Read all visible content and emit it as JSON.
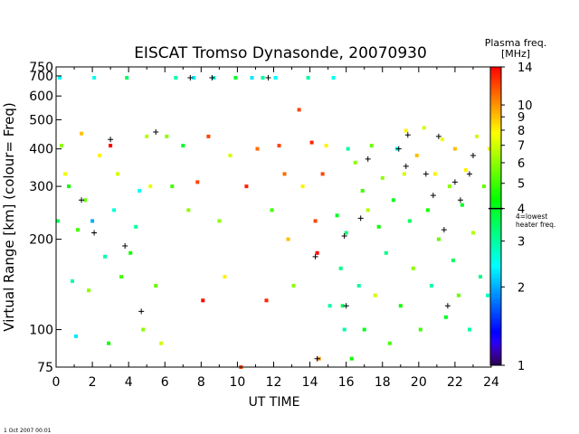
{
  "chart_data": {
    "type": "scatter",
    "title": "EISCAT Tromso Dynasonde,  20070930",
    "xlabel": "UT TIME",
    "ylabel": "Virtual Range [km]   (colour= Freq)",
    "footer": "1 Oct 2007 00:01",
    "x_scale": "linear",
    "y_scale": "log",
    "xlim": [
      0,
      24
    ],
    "ylim": [
      75,
      750
    ],
    "xticks": [
      "0",
      "2",
      "4",
      "6",
      "8",
      "10",
      "12",
      "14",
      "16",
      "18",
      "20",
      "22",
      "24"
    ],
    "yticks": [
      "75",
      "100",
      "200",
      "300",
      "400",
      "500",
      "600",
      "700",
      "750"
    ],
    "colorbar": {
      "title_line1": "Plasma freq.",
      "title_line2": "[MHz]",
      "scale": "log",
      "range": [
        1,
        14
      ],
      "ticks": [
        "1",
        "2",
        "3",
        "4",
        "5",
        "6",
        "7",
        "8",
        "9",
        "10",
        "14"
      ],
      "marker_label_line1": "4=lowest",
      "marker_label_line2": "heater freq.",
      "marker_value": 4
    },
    "series": [
      {
        "marker": "square",
        "points": [
          [
            0.1,
            230,
            3.5
          ],
          [
            0.2,
            690,
            2.4
          ],
          [
            0.3,
            410,
            6.0
          ],
          [
            0.5,
            330,
            7.5
          ],
          [
            0.7,
            300,
            4.5
          ],
          [
            0.9,
            145,
            3.0
          ],
          [
            1.1,
            95,
            2.3
          ],
          [
            1.2,
            215,
            5.0
          ],
          [
            1.4,
            450,
            9.0
          ],
          [
            1.6,
            270,
            5.5
          ],
          [
            1.8,
            135,
            6.0
          ],
          [
            2.0,
            230,
            2.0
          ],
          [
            2.1,
            690,
            2.5
          ],
          [
            2.4,
            380,
            8.0
          ],
          [
            2.7,
            175,
            3.0
          ],
          [
            2.9,
            90,
            4.5
          ],
          [
            3.0,
            410,
            14.0
          ],
          [
            3.2,
            250,
            2.6
          ],
          [
            3.4,
            330,
            7.0
          ],
          [
            3.6,
            150,
            5.0
          ],
          [
            3.9,
            690,
            3.5
          ],
          [
            4.1,
            180,
            4.5
          ],
          [
            4.4,
            220,
            3.0
          ],
          [
            4.6,
            290,
            2.5
          ],
          [
            4.8,
            100,
            6.0
          ],
          [
            5.0,
            440,
            6.5
          ],
          [
            5.2,
            300,
            7.5
          ],
          [
            5.5,
            140,
            5.5
          ],
          [
            5.8,
            90,
            7.0
          ],
          [
            6.1,
            440,
            6.0
          ],
          [
            6.4,
            300,
            5.0
          ],
          [
            6.6,
            690,
            3.0
          ],
          [
            7.0,
            410,
            4.0
          ],
          [
            7.3,
            250,
            6.0
          ],
          [
            7.6,
            690,
            2.3
          ],
          [
            7.8,
            310,
            12.0
          ],
          [
            8.1,
            125,
            14.0
          ],
          [
            8.4,
            440,
            12.0
          ],
          [
            8.7,
            690,
            2.6
          ],
          [
            9.0,
            230,
            6.0
          ],
          [
            9.3,
            150,
            8.0
          ],
          [
            9.6,
            380,
            7.0
          ],
          [
            9.9,
            690,
            4.0
          ],
          [
            10.2,
            75,
            12.0
          ],
          [
            10.5,
            300,
            13.0
          ],
          [
            10.8,
            690,
            2.3
          ],
          [
            11.1,
            400,
            11.0
          ],
          [
            11.4,
            690,
            3.0
          ],
          [
            11.6,
            125,
            13.0
          ],
          [
            11.9,
            250,
            5.0
          ],
          [
            12.1,
            690,
            2.4
          ],
          [
            12.3,
            410,
            12.0
          ],
          [
            12.6,
            330,
            11.0
          ],
          [
            12.8,
            200,
            9.0
          ],
          [
            13.1,
            140,
            6.0
          ],
          [
            13.4,
            540,
            12.0
          ],
          [
            13.6,
            300,
            8.0
          ],
          [
            13.9,
            690,
            3.0
          ],
          [
            14.1,
            420,
            13.0
          ],
          [
            14.3,
            230,
            12.0
          ],
          [
            14.4,
            180,
            14.0
          ],
          [
            14.5,
            80,
            10.0
          ],
          [
            14.7,
            330,
            12.0
          ],
          [
            14.9,
            410,
            8.0
          ],
          [
            15.1,
            120,
            3.0
          ],
          [
            15.3,
            690,
            2.5
          ],
          [
            15.5,
            240,
            4.0
          ],
          [
            15.7,
            160,
            3.2
          ],
          [
            15.8,
            120,
            3.5
          ],
          [
            15.9,
            100,
            3.0
          ],
          [
            16.0,
            210,
            3.3
          ],
          [
            16.1,
            400,
            3.0
          ],
          [
            16.3,
            80,
            4.5
          ],
          [
            16.5,
            360,
            6.0
          ],
          [
            16.7,
            140,
            3.0
          ],
          [
            16.9,
            290,
            5.0
          ],
          [
            17.0,
            100,
            4.0
          ],
          [
            17.2,
            250,
            6.5
          ],
          [
            17.4,
            410,
            5.5
          ],
          [
            17.6,
            130,
            7.0
          ],
          [
            17.8,
            220,
            4.5
          ],
          [
            18.0,
            320,
            6.0
          ],
          [
            18.2,
            180,
            3.2
          ],
          [
            18.4,
            90,
            5.0
          ],
          [
            18.6,
            270,
            4.0
          ],
          [
            18.8,
            400,
            2.5
          ],
          [
            19.0,
            120,
            4.5
          ],
          [
            19.2,
            330,
            7.0
          ],
          [
            19.3,
            460,
            8.0
          ],
          [
            19.5,
            230,
            3.5
          ],
          [
            19.7,
            160,
            6.0
          ],
          [
            19.9,
            380,
            9.0
          ],
          [
            20.1,
            100,
            5.0
          ],
          [
            20.3,
            470,
            7.0
          ],
          [
            20.5,
            250,
            4.5
          ],
          [
            20.7,
            140,
            3.0
          ],
          [
            20.9,
            330,
            8.0
          ],
          [
            21.1,
            200,
            5.5
          ],
          [
            21.3,
            430,
            7.5
          ],
          [
            21.5,
            110,
            4.0
          ],
          [
            21.7,
            300,
            6.0
          ],
          [
            21.9,
            170,
            3.5
          ],
          [
            22.0,
            400,
            9.0
          ],
          [
            22.2,
            130,
            5.5
          ],
          [
            22.4,
            260,
            4.0
          ],
          [
            22.6,
            340,
            8.0
          ],
          [
            22.8,
            100,
            3.0
          ],
          [
            23.0,
            210,
            6.5
          ],
          [
            23.2,
            440,
            7.0
          ],
          [
            23.4,
            150,
            3.2
          ],
          [
            23.6,
            300,
            5.5
          ],
          [
            23.8,
            130,
            2.8
          ],
          [
            23.9,
            400,
            8.0
          ]
        ]
      }
    ],
    "arrows": [
      [
        1.4,
        270
      ],
      [
        2.1,
        210
      ],
      [
        3.0,
        430
      ],
      [
        3.8,
        190
      ],
      [
        4.7,
        115
      ],
      [
        5.5,
        455
      ],
      [
        7.4,
        690
      ],
      [
        8.6,
        690
      ],
      [
        11.7,
        690
      ],
      [
        14.3,
        175
      ],
      [
        14.4,
        80
      ],
      [
        15.9,
        205
      ],
      [
        16.0,
        120
      ],
      [
        16.8,
        235
      ],
      [
        17.2,
        370
      ],
      [
        18.9,
        400
      ],
      [
        19.3,
        350
      ],
      [
        19.4,
        445
      ],
      [
        20.4,
        330
      ],
      [
        20.8,
        280
      ],
      [
        21.1,
        440
      ],
      [
        21.4,
        215
      ],
      [
        21.6,
        120
      ],
      [
        22.0,
        310
      ],
      [
        22.3,
        270
      ],
      [
        22.8,
        330
      ],
      [
        23.0,
        380
      ]
    ]
  }
}
